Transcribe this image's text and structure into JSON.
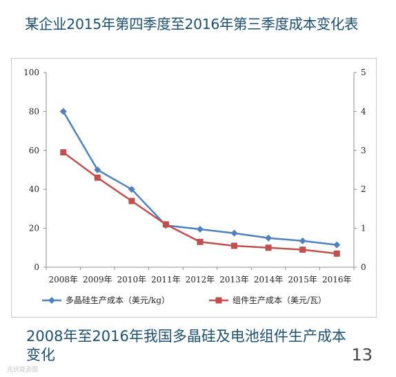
{
  "slide": {
    "title": "某企业2015年第四季度至2016年第三季度成本变化表",
    "caption": "2008年至2016年我国多晶硅及电池组件生产成本变化",
    "page_number": "13",
    "watermark": "光伏能源圈"
  },
  "chart_data": {
    "type": "line",
    "categories": [
      "2008年",
      "2009年",
      "2010年",
      "2011年",
      "2012年",
      "2013年",
      "2014年",
      "2015年",
      "2016年"
    ],
    "series": [
      {
        "name": "多晶硅生产成本（美元/kg）",
        "axis": "left",
        "color": "#4f81bd",
        "marker": "diamond",
        "values": [
          80,
          50,
          40,
          21.5,
          19.5,
          17.5,
          15,
          13.5,
          11.5
        ]
      },
      {
        "name": "组件生产成本（美元/瓦）",
        "axis": "right",
        "color": "#c0504d",
        "marker": "square",
        "values": [
          2.95,
          2.3,
          1.7,
          1.1,
          0.65,
          0.55,
          0.5,
          0.45,
          0.35
        ]
      }
    ],
    "y_left": {
      "lim": [
        0,
        100
      ],
      "ticks": [
        "0",
        "20",
        "40",
        "60",
        "80",
        "100"
      ]
    },
    "y_right": {
      "lim": [
        0,
        5
      ],
      "ticks": [
        "0",
        "1",
        "2",
        "3",
        "4",
        "5"
      ]
    },
    "grid": false,
    "legend": "bottom"
  }
}
